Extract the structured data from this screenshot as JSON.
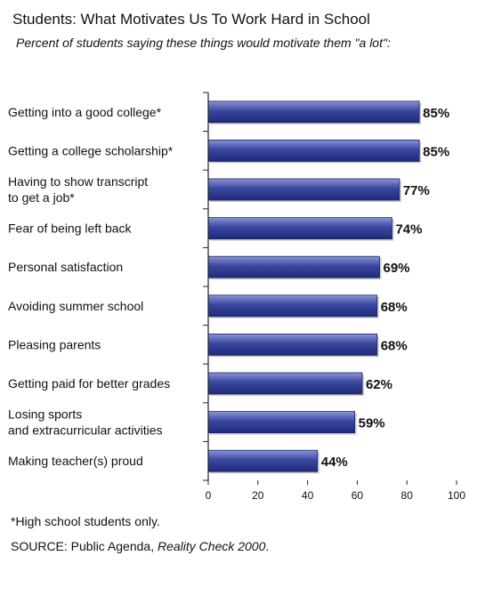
{
  "chart_data": {
    "type": "bar",
    "orientation": "horizontal",
    "title": "Students: What Motivates Us To Work Hard in School",
    "subtitle": "Percent of students saying these things would motivate them \"a lot\":",
    "categories": [
      "Getting into a good college*",
      "Getting a college scholarship*",
      "Having to show transcript\nto get a job*",
      "Fear of being left back",
      "Personal satisfaction",
      "Avoiding summer school",
      "Pleasing parents",
      "Getting paid for better grades",
      "Losing sports\nand extracurricular activities",
      "Making teacher(s) proud"
    ],
    "values": [
      85,
      85,
      77,
      74,
      69,
      68,
      68,
      62,
      59,
      44
    ],
    "value_labels": [
      "85%",
      "85%",
      "77%",
      "74%",
      "69%",
      "68%",
      "68%",
      "62%",
      "59%",
      "44%"
    ],
    "xlim": [
      0,
      100
    ],
    "xticks": [
      0,
      20,
      40,
      60,
      80,
      100
    ],
    "grid": false,
    "bar_color": "#2e3a8c",
    "bar_highlight": "#6f7cc4"
  },
  "footnote": "*High school students only.",
  "source": {
    "prefix": "SOURCE:  Public Agenda, ",
    "italic": "Reality Check 2000",
    "suffix": "."
  }
}
